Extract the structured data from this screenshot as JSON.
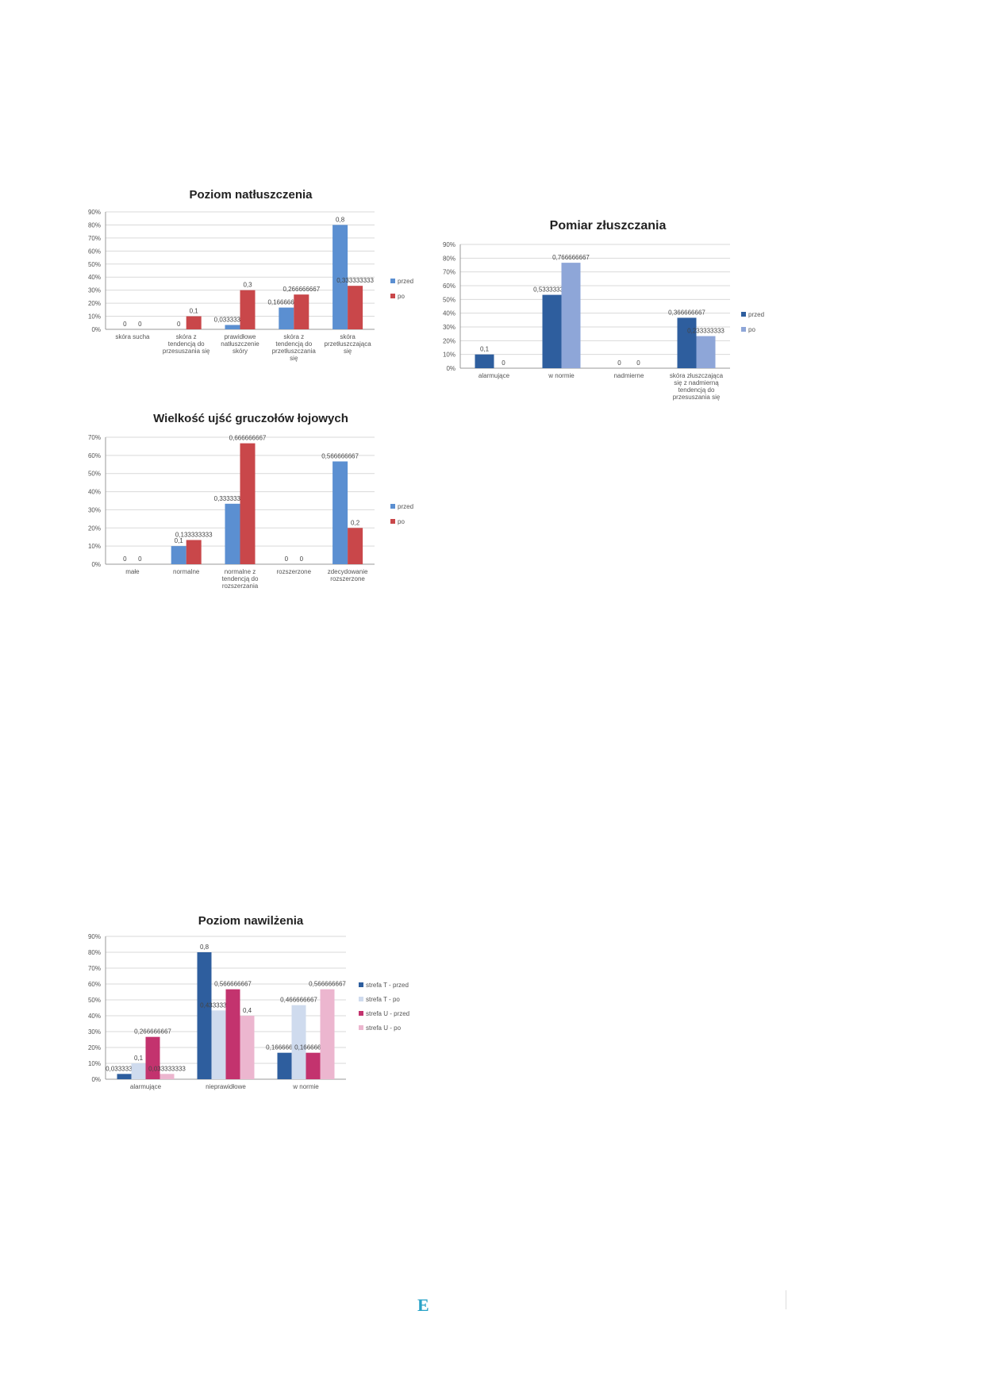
{
  "charts": [
    {
      "id": "natluszczenie",
      "title": "Poziom natłuszczenia",
      "y_ticks": [
        "0%",
        "10%",
        "20%",
        "30%",
        "40%",
        "50%",
        "60%",
        "70%",
        "80%",
        "90%"
      ],
      "ymax": 0.9,
      "colors": [
        "#5b8fd1",
        "#c9474a"
      ],
      "legend": [
        "przed",
        "po"
      ],
      "categories": [
        [
          "skóra sucha"
        ],
        [
          "skóra z",
          "tendencją do",
          "przesuszania się"
        ],
        [
          "prawidłowe",
          "natłuszczenie",
          "skóry"
        ],
        [
          "skóra z",
          "tendencją do",
          "przetłuszczania",
          "się"
        ],
        [
          "skóra",
          "przetłuszczająca",
          "się"
        ]
      ],
      "series": [
        {
          "name": "przed",
          "values": [
            0,
            0,
            0.033333333,
            0.166666667,
            0.8
          ],
          "labels": [
            "0",
            "0",
            "0,033333333",
            "0,166666667",
            "0,8"
          ]
        },
        {
          "name": "po",
          "values": [
            0,
            0.1,
            0.3,
            0.266666667,
            0.333333333
          ],
          "labels": [
            "0",
            "0,1",
            "0,3",
            "0,266666667",
            "0,333333333"
          ]
        }
      ]
    },
    {
      "id": "zluszczanie",
      "title": "Pomiar złuszczania",
      "y_ticks": [
        "0%",
        "10%",
        "20%",
        "30%",
        "40%",
        "50%",
        "60%",
        "70%",
        "80%",
        "90%"
      ],
      "ymax": 0.9,
      "colors": [
        "#2e5e9e",
        "#8ea6d8"
      ],
      "legend": [
        "przed",
        "po"
      ],
      "categories": [
        [
          "alarmujące"
        ],
        [
          "w normie"
        ],
        [
          "nadmierne"
        ],
        [
          "skóra złuszczająca",
          "się z nadmierną",
          "tendencją do",
          "przesuszania się"
        ]
      ],
      "series": [
        {
          "name": "przed",
          "values": [
            0.1,
            0.533333333,
            0,
            0.366666667
          ],
          "labels": [
            "0,1",
            "0,533333333",
            "0",
            "0,366666667"
          ]
        },
        {
          "name": "po",
          "values": [
            0,
            0.766666667,
            0,
            0.233333333
          ],
          "labels": [
            "0",
            "0,766666667",
            "0",
            "0,233333333"
          ]
        }
      ]
    },
    {
      "id": "gruczoly",
      "title": "Wielkość ujść gruczołów łojowych",
      "y_ticks": [
        "0%",
        "10%",
        "20%",
        "30%",
        "40%",
        "50%",
        "60%",
        "70%"
      ],
      "ymax": 0.7,
      "colors": [
        "#5b8fd1",
        "#c9474a"
      ],
      "legend": [
        "przed",
        "po"
      ],
      "categories": [
        [
          "małe"
        ],
        [
          "normalne"
        ],
        [
          "normalne z",
          "tendencją do",
          "rozszerzania"
        ],
        [
          "rozszerzone"
        ],
        [
          "zdecydowanie",
          "rozszerzone"
        ]
      ],
      "series": [
        {
          "name": "przed",
          "values": [
            0,
            0.1,
            0.333333333,
            0,
            0.566666667
          ],
          "labels": [
            "0",
            "0,1",
            "0,333333333",
            "0",
            "0,566666667"
          ]
        },
        {
          "name": "po",
          "values": [
            0,
            0.133333333,
            0.666666667,
            0,
            0.2
          ],
          "labels": [
            "0",
            "0,133333333",
            "0,666666667",
            "0",
            "0,2"
          ]
        }
      ]
    },
    {
      "id": "nawilzenie",
      "title": "Poziom nawilżenia",
      "y_ticks": [
        "0%",
        "10%",
        "20%",
        "30%",
        "40%",
        "50%",
        "60%",
        "70%",
        "80%",
        "90%"
      ],
      "ymax": 0.9,
      "colors": [
        "#2e5e9e",
        "#cfdbee",
        "#c3336e",
        "#ecb6cf"
      ],
      "legend": [
        "strefa T - przed",
        "strefa T - po",
        "strefa U - przed",
        "strefa U - po"
      ],
      "categories": [
        [
          "alarmujące"
        ],
        [
          "nieprawidłowe"
        ],
        [
          "w normie"
        ]
      ],
      "series": [
        {
          "name": "strefa T - przed",
          "values": [
            0.033333333,
            0.8,
            0.166666667
          ],
          "labels": [
            "0,033333333",
            "0,8",
            "0,166666667"
          ]
        },
        {
          "name": "strefa T - po",
          "values": [
            0.1,
            0.433333333,
            0.466666667
          ],
          "labels": [
            "0,1",
            "0,433333333",
            "0,466666667"
          ]
        },
        {
          "name": "strefa U - przed",
          "values": [
            0.266666667,
            0.566666667,
            0.166666667
          ],
          "labels": [
            "0,266666667",
            "0,566666667",
            "0,166666667"
          ]
        },
        {
          "name": "strefa U - po",
          "values": [
            0.033333333,
            0.4,
            0.566666667
          ],
          "labels": [
            "0,033333333",
            "0,4",
            "0,566666667"
          ]
        }
      ]
    }
  ],
  "chart_data": [
    {
      "type": "bar",
      "title": "Poziom natłuszczenia",
      "categories": [
        "skóra sucha",
        "skóra z tendencją do przesuszania się",
        "prawidłowe natłuszczenie skóry",
        "skóra z tendencją do przetłuszczania się",
        "skóra przetłuszczająca się"
      ],
      "series": [
        {
          "name": "przed",
          "values": [
            0,
            0,
            0.033333333,
            0.166666667,
            0.8
          ]
        },
        {
          "name": "po",
          "values": [
            0,
            0.1,
            0.3,
            0.266666667,
            0.333333333
          ]
        }
      ],
      "ylim": [
        0,
        0.9
      ],
      "legend": "right",
      "grid": true
    },
    {
      "type": "bar",
      "title": "Pomiar złuszczania",
      "categories": [
        "alarmujące",
        "w normie",
        "nadmierne",
        "skóra złuszczająca się z nadmierną tendencją do przesuszania się"
      ],
      "series": [
        {
          "name": "przed",
          "values": [
            0.1,
            0.533333333,
            0,
            0.366666667
          ]
        },
        {
          "name": "po",
          "values": [
            0,
            0.766666667,
            0,
            0.233333333
          ]
        }
      ],
      "ylim": [
        0,
        0.9
      ],
      "legend": "right",
      "grid": true
    },
    {
      "type": "bar",
      "title": "Wielkość ujść gruczołów łojowych",
      "categories": [
        "małe",
        "normalne",
        "normalne z tendencją do rozszerzania",
        "rozszerzone",
        "zdecydowanie rozszerzone"
      ],
      "series": [
        {
          "name": "przed",
          "values": [
            0,
            0.1,
            0.333333333,
            0,
            0.566666667
          ]
        },
        {
          "name": "po",
          "values": [
            0,
            0.133333333,
            0.666666667,
            0,
            0.2
          ]
        }
      ],
      "ylim": [
        0,
        0.7
      ],
      "legend": "right",
      "grid": true
    },
    {
      "type": "bar",
      "title": "Poziom nawilżenia",
      "categories": [
        "alarmujące",
        "nieprawidłowe",
        "w normie"
      ],
      "series": [
        {
          "name": "strefa T - przed",
          "values": [
            0.033333333,
            0.8,
            0.166666667
          ]
        },
        {
          "name": "strefa T - po",
          "values": [
            0.1,
            0.433333333,
            0.466666667
          ]
        },
        {
          "name": "strefa U - przed",
          "values": [
            0.266666667,
            0.566666667,
            0.166666667
          ]
        },
        {
          "name": "strefa U - po",
          "values": [
            0.033333333,
            0.4,
            0.566666667
          ]
        }
      ],
      "ylim": [
        0,
        0.9
      ],
      "legend": "right",
      "grid": true
    }
  ],
  "footer": {
    "logo": "E"
  }
}
